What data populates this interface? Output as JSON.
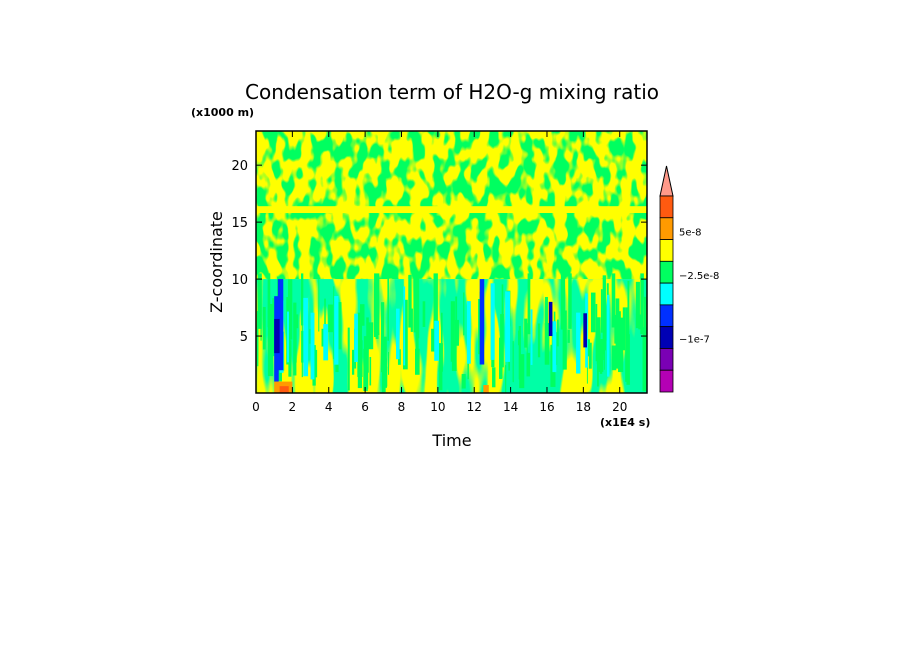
{
  "chart_data": {
    "type": "heatmap",
    "title": "Condensation term of H2O-g mixing ratio",
    "xlabel": "Time",
    "ylabel": "Z-coordinate",
    "x_unit_label": "(x1E4 s)",
    "y_unit_label": "(x1000 m)",
    "xlim": [
      0,
      21.5
    ],
    "ylim": [
      0,
      23
    ],
    "x_ticks": [
      "0",
      "2",
      "4",
      "6",
      "8",
      "10",
      "12",
      "14",
      "16",
      "18",
      "20"
    ],
    "y_ticks": [
      "5",
      "10",
      "15",
      "20"
    ],
    "colorbar": {
      "tick_labels": [
        "5e-8",
        "−2.5e-8",
        "−1e-7"
      ],
      "colors": [
        "#ff9a8a",
        "#ff5a10",
        "#ff9a00",
        "#ffff00",
        "#00ff60",
        "#00ffff",
        "#0030ff",
        "#0000b4",
        "#7a00b4",
        "#b400b4"
      ]
    },
    "regions": [
      {
        "level": "yellow",
        "x_range": [
          0,
          21.5
        ],
        "y_range": [
          0,
          10
        ]
      },
      {
        "level": "green",
        "x_range": [
          0,
          21.5
        ],
        "y_range": [
          10,
          23
        ]
      },
      {
        "level": "yellow",
        "x_range": [
          0,
          21.5
        ],
        "y_range": [
          15.8,
          16.4
        ]
      },
      {
        "level": "blue",
        "x_range": [
          1.0,
          1.5
        ],
        "y_range": [
          1,
          10
        ]
      },
      {
        "level": "blue",
        "x_range": [
          12.3,
          12.6
        ],
        "y_range": [
          2,
          10
        ]
      },
      {
        "level": "red",
        "x_range": [
          1.0,
          2.0
        ],
        "y_range": [
          0,
          1
        ]
      }
    ]
  }
}
